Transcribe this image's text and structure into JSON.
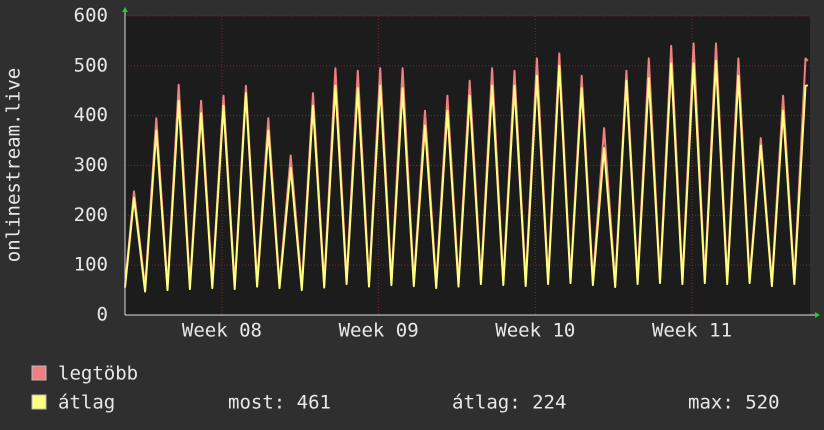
{
  "chart_data": {
    "type": "line",
    "y_label": "onlinestream.live",
    "x": [
      0,
      0.4,
      0.9,
      1.4,
      1.9,
      2.4,
      2.9,
      3.4,
      3.9,
      4.4,
      4.9,
      5.4,
      5.9,
      6.4,
      6.9,
      7.4,
      7.9,
      8.4,
      8.9,
      9.4,
      9.9,
      10.4,
      10.9,
      11.4,
      11.9,
      12.4,
      12.9,
      13.4,
      13.9,
      14.4,
      14.9,
      15.4,
      15.9,
      16.4,
      16.9,
      17.4,
      17.9,
      18.4,
      18.9,
      19.4,
      19.9,
      20.4,
      20.9,
      21.4,
      21.9,
      22.4,
      22.9,
      23.4,
      23.9,
      24.4,
      24.9,
      25.4,
      25.9,
      26.4,
      26.9,
      27.4,
      27.9,
      28.4,
      28.9,
      29.4,
      29.9,
      30.4,
      30.5
    ],
    "series": [
      {
        "name": "legtöbb",
        "color": "#f08080",
        "values": [
          60,
          248,
          55,
          395,
          58,
          462,
          60,
          430,
          62,
          440,
          60,
          460,
          65,
          395,
          62,
          320,
          58,
          445,
          63,
          495,
          70,
          490,
          65,
          495,
          68,
          495,
          66,
          410,
          62,
          440,
          65,
          470,
          70,
          495,
          68,
          490,
          66,
          515,
          70,
          525,
          72,
          480,
          68,
          375,
          64,
          490,
          70,
          515,
          72,
          540,
          70,
          545,
          72,
          545,
          70,
          515,
          72,
          355,
          66,
          440,
          70,
          515,
          510
        ]
      },
      {
        "name": "átlag",
        "color": "#ffff80",
        "values": [
          55,
          235,
          47,
          370,
          50,
          430,
          52,
          405,
          54,
          420,
          52,
          445,
          57,
          370,
          54,
          295,
          50,
          420,
          55,
          460,
          62,
          455,
          57,
          460,
          60,
          455,
          58,
          380,
          54,
          410,
          57,
          440,
          62,
          460,
          60,
          460,
          58,
          480,
          62,
          500,
          64,
          455,
          60,
          335,
          56,
          470,
          62,
          475,
          64,
          505,
          62,
          505,
          64,
          510,
          62,
          480,
          64,
          340,
          58,
          410,
          62,
          460,
          461
        ]
      }
    ],
    "stats": [
      "most: 461",
      "átlag: 224",
      "max: 520"
    ],
    "xlim": [
      0,
      30.6
    ],
    "xticks": [
      {
        "value": 4.33,
        "label": "Week 08"
      },
      {
        "value": 11.33,
        "label": "Week 09"
      },
      {
        "value": 18.33,
        "label": "Week 10"
      },
      {
        "value": 25.33,
        "label": "Week 11"
      }
    ],
    "ylim": [
      0,
      600
    ],
    "yticks": [
      0,
      100,
      200,
      300,
      400,
      500,
      600
    ],
    "grid": true
  }
}
